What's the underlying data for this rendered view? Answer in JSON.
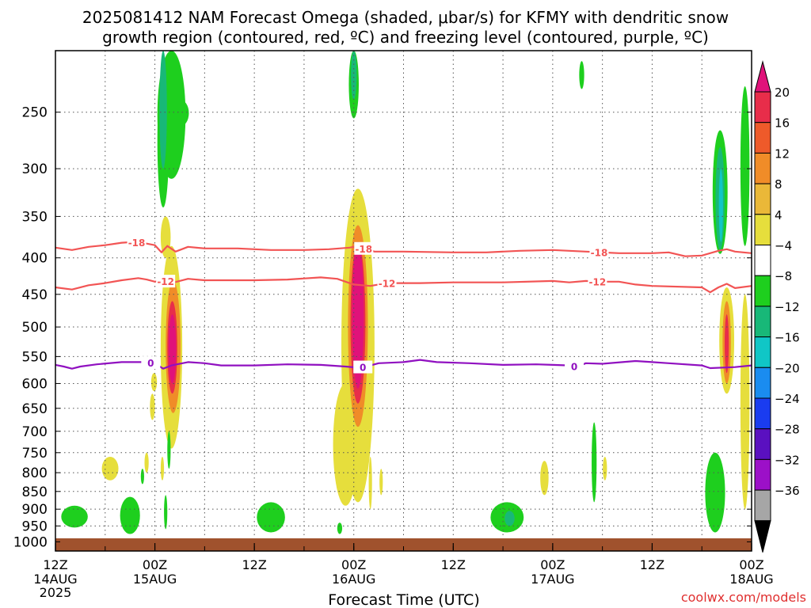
{
  "chart_data": {
    "type": "heatmap",
    "title_line1": "2025081412 NAM Forecast Omega (shaded, μbar/s) for KFMY with dendritic snow",
    "title_line2": "growth region (contoured, red, ºC) and freezing level (contoured, purple, ºC)",
    "xlabel": "Forecast Time (UTC)",
    "ylabel": "",
    "credit": "coolwx.com/models",
    "y_axis": {
      "scale": "log-pressure",
      "range": [
        1030,
        205
      ],
      "ticks": [
        250,
        300,
        350,
        400,
        450,
        500,
        550,
        600,
        650,
        700,
        750,
        800,
        850,
        900,
        950,
        1000
      ]
    },
    "x_axis": {
      "range_hours": [
        0,
        84
      ],
      "gridlines_hours": [
        6,
        12,
        18,
        24,
        30,
        36,
        42,
        48,
        54,
        60,
        66,
        72,
        78
      ],
      "ticks": [
        {
          "hour": 0,
          "time": "12Z",
          "date": "14AUG",
          "year": "2025"
        },
        {
          "hour": 12,
          "time": "00Z",
          "date": "15AUG",
          "year": ""
        },
        {
          "hour": 24,
          "time": "12Z",
          "date": "",
          "year": ""
        },
        {
          "hour": 36,
          "time": "00Z",
          "date": "16AUG",
          "year": ""
        },
        {
          "hour": 48,
          "time": "12Z",
          "date": "",
          "year": ""
        },
        {
          "hour": 60,
          "time": "00Z",
          "date": "17AUG",
          "year": ""
        },
        {
          "hour": 72,
          "time": "12Z",
          "date": "",
          "year": ""
        },
        {
          "hour": 84,
          "time": "00Z",
          "date": "18AUG",
          "year": ""
        }
      ]
    },
    "grid": true,
    "colorbar": {
      "position": "right",
      "labels": [
        "20",
        "16",
        "12",
        "8",
        "4",
        "−4",
        "−8",
        "−12",
        "−16",
        "−20",
        "−24",
        "−28",
        "−32",
        "−36"
      ],
      "top_color": "#e0127a",
      "bottom_color": "#000000",
      "colors": [
        "#e82d4a",
        "#ee5a2a",
        "#f08c28",
        "#eab838",
        "#e6de3c",
        "#ffffff",
        "#1ecf1e",
        "#18b878",
        "#10c6c6",
        "#1a8cf0",
        "#1a3cf0",
        "#5a10c0",
        "#9c10c8",
        "#a6a6a6"
      ]
    },
    "ground_color": "#a0522d",
    "contours": [
      {
        "name": "dendritic -18",
        "color": "#f25454",
        "label": "-18",
        "label_hours": [
          9.8,
          37.2,
          65.6
        ],
        "points": [
          [
            0,
            387
          ],
          [
            2,
            390
          ],
          [
            4,
            386
          ],
          [
            6,
            384
          ],
          [
            8,
            381
          ],
          [
            9.5,
            380
          ],
          [
            11,
            382
          ],
          [
            12,
            384
          ],
          [
            12.8,
            393
          ],
          [
            13.5,
            385
          ],
          [
            14.5,
            392
          ],
          [
            16,
            386
          ],
          [
            18,
            388
          ],
          [
            22,
            388
          ],
          [
            26,
            390
          ],
          [
            30,
            390
          ],
          [
            33,
            389
          ],
          [
            35.5,
            387
          ],
          [
            36.5,
            385
          ],
          [
            37.2,
            388
          ],
          [
            38.5,
            392
          ],
          [
            42,
            392
          ],
          [
            48,
            393
          ],
          [
            52,
            393
          ],
          [
            56,
            391
          ],
          [
            60,
            390
          ],
          [
            64,
            392
          ],
          [
            68,
            394
          ],
          [
            72,
            394
          ],
          [
            74,
            393
          ],
          [
            76,
            398
          ],
          [
            78,
            397
          ],
          [
            80,
            391
          ],
          [
            81,
            389
          ],
          [
            82,
            392
          ],
          [
            84,
            394
          ]
        ]
      },
      {
        "name": "dendritic -12",
        "color": "#f25454",
        "label": "-12",
        "label_hours": [
          13.3,
          40.0,
          65.4
        ],
        "points": [
          [
            0,
            440
          ],
          [
            2,
            443
          ],
          [
            4,
            437
          ],
          [
            6,
            434
          ],
          [
            8,
            430
          ],
          [
            10,
            427
          ],
          [
            11,
            429
          ],
          [
            12,
            432
          ],
          [
            13,
            430
          ],
          [
            14,
            434
          ],
          [
            16,
            428
          ],
          [
            18,
            430
          ],
          [
            24,
            430
          ],
          [
            28,
            429
          ],
          [
            32,
            426
          ],
          [
            34,
            428
          ],
          [
            36,
            436
          ],
          [
            38,
            438
          ],
          [
            40,
            434
          ],
          [
            44,
            434
          ],
          [
            48,
            433
          ],
          [
            54,
            433
          ],
          [
            60,
            431
          ],
          [
            62,
            433
          ],
          [
            64,
            431
          ],
          [
            66,
            432
          ],
          [
            68,
            432
          ],
          [
            70,
            436
          ],
          [
            72,
            438
          ],
          [
            78,
            440
          ],
          [
            79,
            447
          ],
          [
            80,
            440
          ],
          [
            81,
            435
          ],
          [
            82,
            441
          ],
          [
            84,
            438
          ]
        ]
      },
      {
        "name": "freezing level 0",
        "color": "#9010c0",
        "label": "0",
        "label_hours": [
          11.5,
          37.1,
          62.6
        ],
        "points": [
          [
            0,
            565
          ],
          [
            1,
            568
          ],
          [
            2,
            572
          ],
          [
            3,
            568
          ],
          [
            5,
            564
          ],
          [
            8,
            560
          ],
          [
            11,
            560
          ],
          [
            12,
            562
          ],
          [
            13,
            572
          ],
          [
            14,
            566
          ],
          [
            16,
            560
          ],
          [
            18,
            562
          ],
          [
            20,
            566
          ],
          [
            24,
            566
          ],
          [
            28,
            564
          ],
          [
            32,
            565
          ],
          [
            35,
            568
          ],
          [
            36.5,
            570
          ],
          [
            37.5,
            568
          ],
          [
            39,
            562
          ],
          [
            42,
            560
          ],
          [
            44,
            556
          ],
          [
            46,
            560
          ],
          [
            50,
            562
          ],
          [
            54,
            565
          ],
          [
            58,
            564
          ],
          [
            60,
            565
          ],
          [
            62,
            566
          ],
          [
            63,
            568
          ],
          [
            64,
            562
          ],
          [
            66,
            563
          ],
          [
            70,
            558
          ],
          [
            72,
            560
          ],
          [
            74,
            562
          ],
          [
            78,
            566
          ],
          [
            79,
            571
          ],
          [
            82,
            569
          ],
          [
            84,
            566
          ]
        ]
      }
    ],
    "omega_blobs": [
      {
        "hour": 2.3,
        "hw": 1.6,
        "p_top": 890,
        "p_bot": 955,
        "color": "#1ecf1e"
      },
      {
        "hour": 6.6,
        "hw": 1.0,
        "p_top": 760,
        "p_bot": 820,
        "color": "#e6de3c"
      },
      {
        "hour": 9.0,
        "hw": 1.2,
        "p_top": 865,
        "p_bot": 975,
        "color": "#1ecf1e"
      },
      {
        "hour": 11.7,
        "hw": 0.3,
        "p_top": 620,
        "p_bot": 675,
        "color": "#e6de3c"
      },
      {
        "hour": 11.9,
        "hw": 0.35,
        "p_top": 580,
        "p_bot": 615,
        "color": "#e6de3c"
      },
      {
        "hour": 13.0,
        "hw": 0.7,
        "p_top": 222,
        "p_bot": 340,
        "color": "#1ecf1e"
      },
      {
        "hour": 14.0,
        "hw": 1.7,
        "p_top": 205,
        "p_bot": 310,
        "color": "#1ecf1e"
      },
      {
        "hour": 15.0,
        "hw": 1.1,
        "p_top": 240,
        "p_bot": 262,
        "color": "#1ecf1e"
      },
      {
        "hour": 13.0,
        "hw": 0.45,
        "p_top": 205,
        "p_bot": 300,
        "color": "#18b878"
      },
      {
        "hour": 13.3,
        "hw": 0.6,
        "p_top": 350,
        "p_bot": 400,
        "color": "#e6de3c"
      },
      {
        "hour": 14.0,
        "hw": 1.3,
        "p_top": 385,
        "p_bot": 740,
        "color": "#e6de3c"
      },
      {
        "hour": 14.2,
        "hw": 0.9,
        "p_top": 430,
        "p_bot": 660,
        "color": "#f08c28"
      },
      {
        "hour": 14.1,
        "hw": 0.6,
        "p_top": 460,
        "p_bot": 620,
        "color": "#e82d4a"
      },
      {
        "hour": 14.1,
        "hw": 0.45,
        "p_top": 480,
        "p_bot": 600,
        "color": "#e0127a"
      },
      {
        "hour": 13.3,
        "hw": 0.2,
        "p_top": 860,
        "p_bot": 960,
        "color": "#1ecf1e"
      },
      {
        "hour": 13.7,
        "hw": 0.2,
        "p_top": 700,
        "p_bot": 790,
        "color": "#1ecf1e"
      },
      {
        "hour": 12.9,
        "hw": 0.2,
        "p_top": 760,
        "p_bot": 820,
        "color": "#e6de3c"
      },
      {
        "hour": 11.0,
        "hw": 0.25,
        "p_top": 750,
        "p_bot": 800,
        "color": "#e6de3c"
      },
      {
        "hour": 10.5,
        "hw": 0.2,
        "p_top": 790,
        "p_bot": 830,
        "color": "#1ecf1e"
      },
      {
        "hour": 26.0,
        "hw": 1.7,
        "p_top": 880,
        "p_bot": 970,
        "color": "#1ecf1e"
      },
      {
        "hour": 34.3,
        "hw": 0.3,
        "p_top": 940,
        "p_bot": 975,
        "color": "#1ecf1e"
      },
      {
        "hour": 36.0,
        "hw": 0.6,
        "p_top": 205,
        "p_bot": 255,
        "color": "#1ecf1e"
      },
      {
        "hour": 36.0,
        "hw": 0.35,
        "p_top": 205,
        "p_bot": 240,
        "color": "#18b878"
      },
      {
        "hour": 36.5,
        "hw": 2.0,
        "p_top": 320,
        "p_bot": 880,
        "color": "#e6de3c"
      },
      {
        "hour": 35.0,
        "hw": 1.5,
        "p_top": 600,
        "p_bot": 890,
        "color": "#e6de3c"
      },
      {
        "hour": 36.5,
        "hw": 1.2,
        "p_top": 360,
        "p_bot": 690,
        "color": "#f08c28"
      },
      {
        "hour": 36.5,
        "hw": 0.9,
        "p_top": 380,
        "p_bot": 640,
        "color": "#e82d4a"
      },
      {
        "hour": 36.5,
        "hw": 0.7,
        "p_top": 380,
        "p_bot": 610,
        "color": "#e0127a"
      },
      {
        "hour": 38.0,
        "hw": 0.2,
        "p_top": 760,
        "p_bot": 900,
        "color": "#e6de3c"
      },
      {
        "hour": 39.3,
        "hw": 0.2,
        "p_top": 790,
        "p_bot": 860,
        "color": "#e6de3c"
      },
      {
        "hour": 54.5,
        "hw": 2.0,
        "p_top": 880,
        "p_bot": 970,
        "color": "#1ecf1e"
      },
      {
        "hour": 54.8,
        "hw": 0.6,
        "p_top": 905,
        "p_bot": 950,
        "color": "#18b878"
      },
      {
        "hour": 59.0,
        "hw": 0.5,
        "p_top": 770,
        "p_bot": 860,
        "color": "#e6de3c"
      },
      {
        "hour": 63.5,
        "hw": 0.3,
        "p_top": 212,
        "p_bot": 232,
        "color": "#1ecf1e"
      },
      {
        "hour": 65.0,
        "hw": 0.3,
        "p_top": 680,
        "p_bot": 880,
        "color": "#1ecf1e"
      },
      {
        "hour": 66.3,
        "hw": 0.25,
        "p_top": 760,
        "p_bot": 820,
        "color": "#e6de3c"
      },
      {
        "hour": 79.6,
        "hw": 1.2,
        "p_top": 750,
        "p_bot": 970,
        "color": "#1ecf1e"
      },
      {
        "hour": 80.2,
        "hw": 0.9,
        "p_top": 265,
        "p_bot": 395,
        "color": "#1ecf1e"
      },
      {
        "hour": 80.2,
        "hw": 0.55,
        "p_top": 280,
        "p_bot": 390,
        "color": "#18b878"
      },
      {
        "hour": 80.3,
        "hw": 0.25,
        "p_top": 300,
        "p_bot": 380,
        "color": "#10c6c6"
      },
      {
        "hour": 81.0,
        "hw": 0.9,
        "p_top": 440,
        "p_bot": 620,
        "color": "#e6de3c"
      },
      {
        "hour": 81.0,
        "hw": 0.5,
        "p_top": 460,
        "p_bot": 600,
        "color": "#f08c28"
      },
      {
        "hour": 81.0,
        "hw": 0.25,
        "p_top": 480,
        "p_bot": 580,
        "color": "#e82d4a"
      },
      {
        "hour": 83.2,
        "hw": 0.55,
        "p_top": 230,
        "p_bot": 385,
        "color": "#1ecf1e"
      },
      {
        "hour": 83.2,
        "hw": 0.55,
        "p_top": 450,
        "p_bot": 900,
        "color": "#e6de3c"
      }
    ]
  }
}
